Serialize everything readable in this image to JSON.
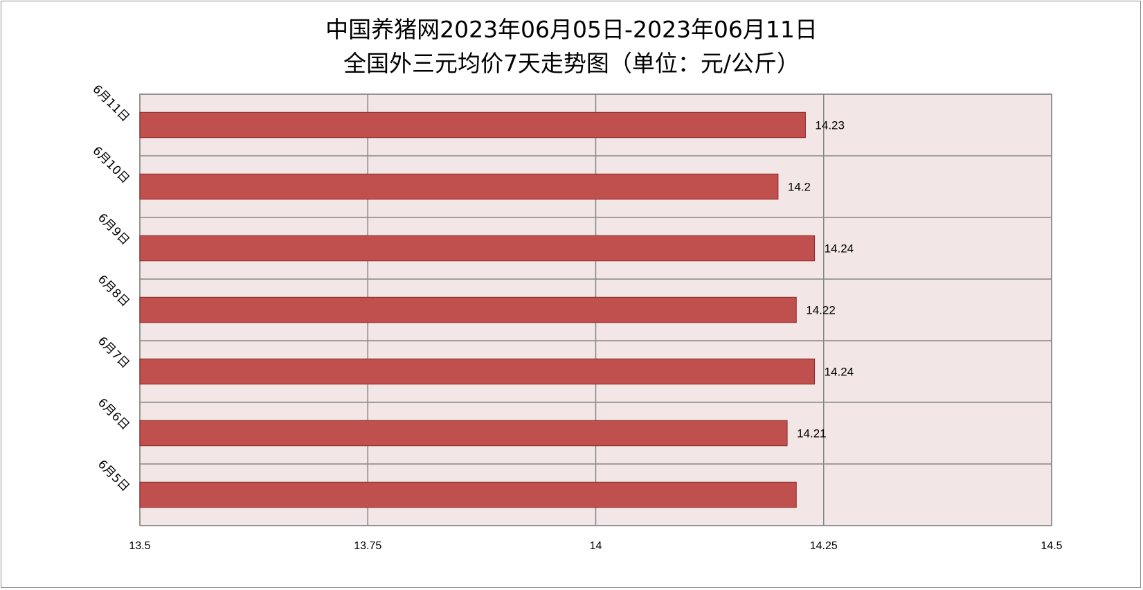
{
  "chart_data": {
    "type": "bar",
    "orientation": "horizontal",
    "title_lines": [
      "中国养猪网2023年06月05日-2023年06月11日",
      "全国外三元均价7天走势图（单位：元/公斤）"
    ],
    "categories": [
      "6月5日",
      "6月6日",
      "6月7日",
      "6月8日",
      "6月9日",
      "6月10日",
      "6月11日"
    ],
    "values": [
      14.22,
      14.21,
      14.24,
      14.22,
      14.24,
      14.2,
      14.23
    ],
    "data_labels": [
      "",
      "14.21",
      "14.24",
      "14.22",
      "14.24",
      "14.2",
      "14.23"
    ],
    "xlim": [
      13.5,
      14.5
    ],
    "x_ticks": [
      13.5,
      13.75,
      14,
      14.25,
      14.5
    ],
    "x_tick_labels": [
      "13.5",
      "13.75",
      "14",
      "14.25",
      "14.5"
    ],
    "grid": true,
    "legend": "none",
    "bar_color": "#c0504d",
    "bar_edge_color": "#8b2a28",
    "plot_background": "#f2e6e6",
    "grid_color": "#868686"
  }
}
